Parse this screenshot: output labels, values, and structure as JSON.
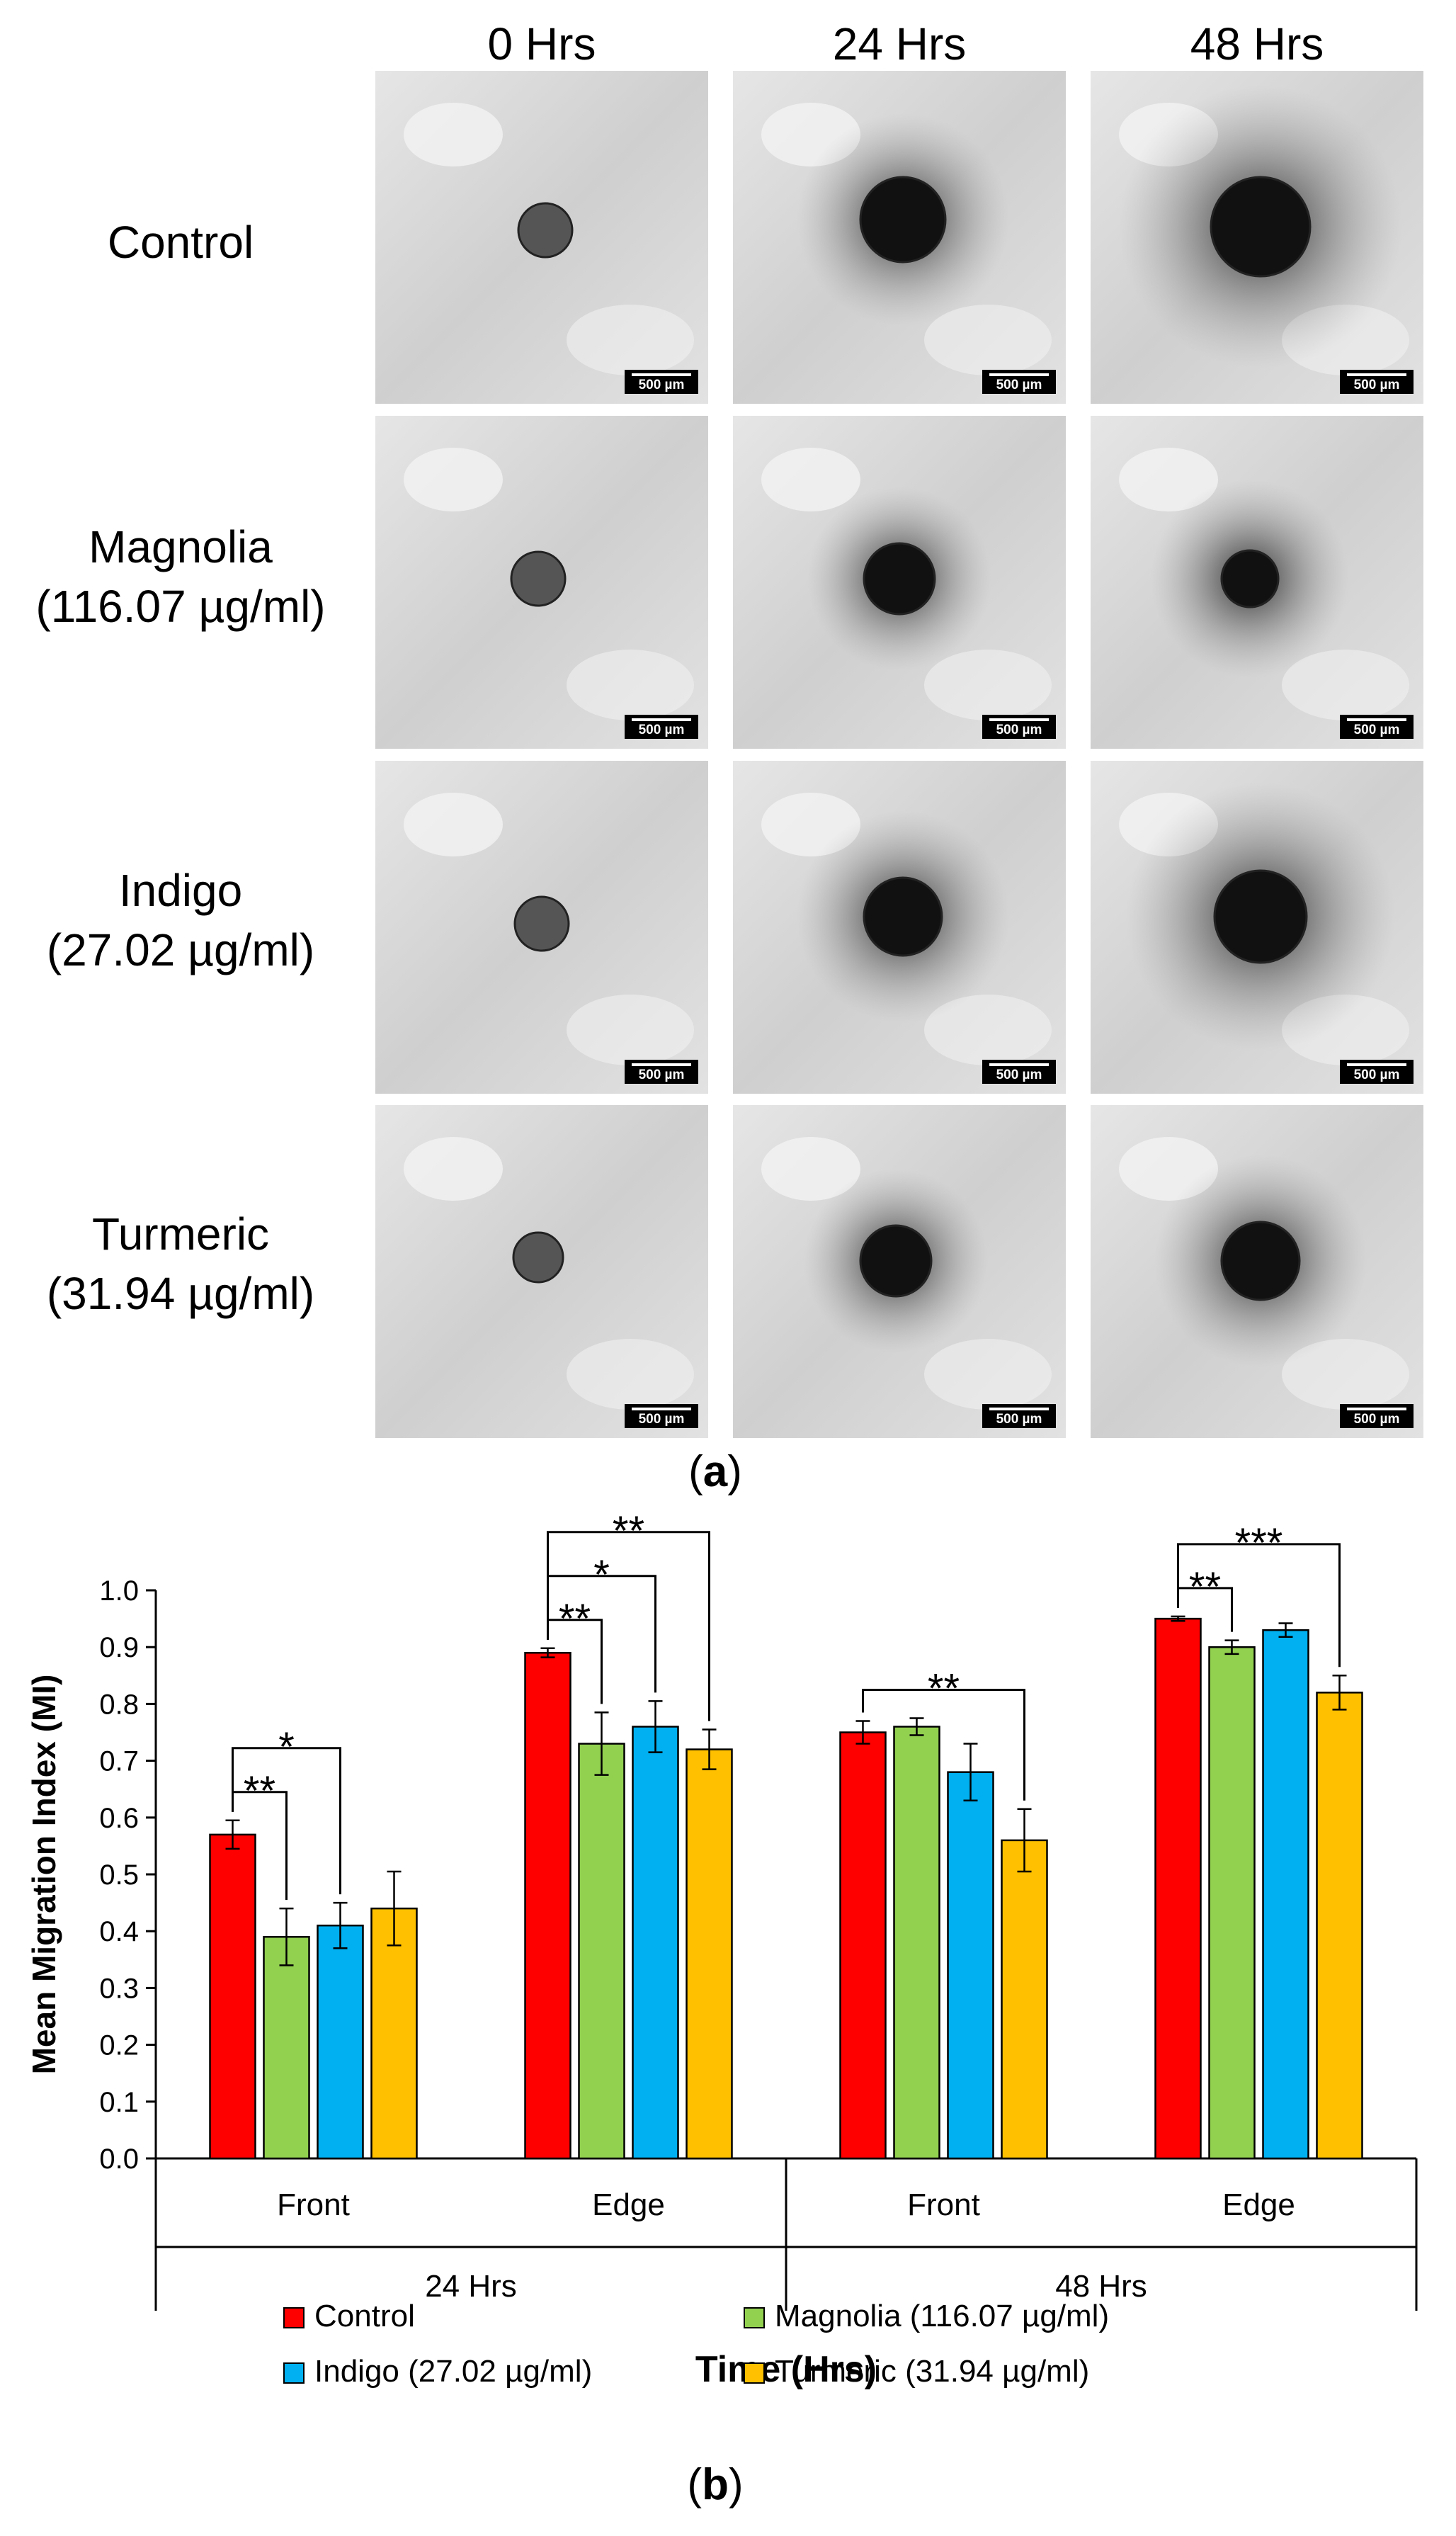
{
  "panel_a": {
    "columns": [
      "0 Hrs",
      "24 Hrs",
      "48 Hrs"
    ],
    "rows": [
      {
        "name": "Control",
        "conc": ""
      },
      {
        "name": "Magnolia",
        "conc": "(116.07 µg/ml)"
      },
      {
        "name": "Indigo",
        "conc": "(27.02 µg/ml)"
      },
      {
        "name": "Turmeric",
        "conc": "(31.94 µg/ml)"
      }
    ],
    "scale_bar": "500 µm",
    "label_prefix": "(",
    "label_letter": "a",
    "label_suffix": ")"
  },
  "panel_b": {
    "label_prefix": "(",
    "label_letter": "b",
    "label_suffix": ")"
  },
  "colors": {
    "Control": "#ff0000",
    "Magnolia": "#92d050",
    "Indigo": "#00b0f0",
    "Turmeric": "#ffc000"
  },
  "chart_data": {
    "type": "bar",
    "title": "",
    "ylabel": "Mean Migration Index (MI)",
    "xlabel": "Time (Hrs)",
    "ylim": [
      0.0,
      1.0
    ],
    "yticks": [
      "0.0",
      "0.1",
      "0.2",
      "0.3",
      "0.4",
      "0.5",
      "0.6",
      "0.7",
      "0.8",
      "0.9",
      "1.0"
    ],
    "groups": [
      {
        "time": "24 Hrs",
        "categories": [
          "Front",
          "Edge"
        ]
      },
      {
        "time": "48 Hrs",
        "categories": [
          "Front",
          "Edge"
        ]
      }
    ],
    "categories": [
      "Front",
      "Edge",
      "Front",
      "Edge"
    ],
    "series": [
      {
        "name": "Control",
        "values": [
          0.57,
          0.89,
          0.75,
          0.95
        ],
        "errors": [
          0.025,
          0.008,
          0.02,
          0.004
        ]
      },
      {
        "name": "Magnolia (116.07 µg/ml)",
        "values": [
          0.39,
          0.73,
          0.76,
          0.9
        ],
        "errors": [
          0.05,
          0.055,
          0.015,
          0.012
        ]
      },
      {
        "name": "Indigo (27.02 µg/ml)",
        "values": [
          0.41,
          0.76,
          0.68,
          0.93
        ],
        "errors": [
          0.04,
          0.045,
          0.05,
          0.012
        ]
      },
      {
        "name": "Turmeric (31.94 µg/ml)",
        "values": [
          0.44,
          0.72,
          0.56,
          0.82
        ],
        "errors": [
          0.065,
          0.035,
          0.055,
          0.03
        ]
      }
    ],
    "significance": [
      {
        "category": 0,
        "from": 0,
        "to": 1,
        "label": "**"
      },
      {
        "category": 0,
        "from": 0,
        "to": 2,
        "label": "*"
      },
      {
        "category": 1,
        "from": 0,
        "to": 1,
        "label": "**"
      },
      {
        "category": 1,
        "from": 0,
        "to": 2,
        "label": "*"
      },
      {
        "category": 1,
        "from": 0,
        "to": 3,
        "label": "**"
      },
      {
        "category": 2,
        "from": 0,
        "to": 3,
        "label": "**"
      },
      {
        "category": 3,
        "from": 0,
        "to": 1,
        "label": "**"
      },
      {
        "category": 3,
        "from": 0,
        "to": 3,
        "label": "***"
      }
    ],
    "legend": [
      "Control",
      "Magnolia (116.07 µg/ml)",
      "Indigo (27.02 µg/ml)",
      "Turmeric (31.94 µg/ml)"
    ]
  }
}
